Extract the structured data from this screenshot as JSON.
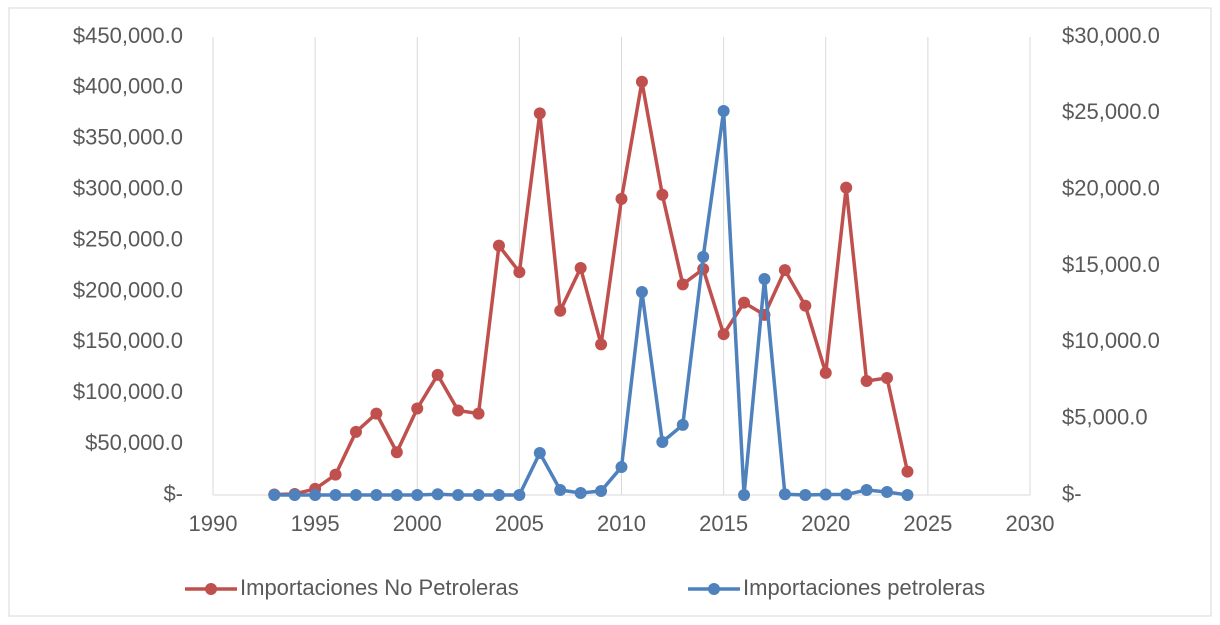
{
  "chart_data": {
    "type": "line",
    "x": [
      1993,
      1994,
      1995,
      1996,
      1997,
      1998,
      1999,
      2000,
      2001,
      2002,
      2003,
      2004,
      2005,
      2006,
      2007,
      2008,
      2009,
      2010,
      2011,
      2012,
      2013,
      2014,
      2015,
      2016,
      2017,
      2018,
      2019,
      2020,
      2021,
      2022,
      2023,
      2024
    ],
    "series": [
      {
        "name": "Importaciones No Petroleras",
        "color": "#c0504d",
        "values": [
          500,
          1000,
          6000,
          20000,
          62000,
          80000,
          42000,
          85000,
          118000,
          83000,
          80000,
          245000,
          219000,
          375000,
          181000,
          223000,
          148000,
          291000,
          406000,
          295000,
          207000,
          222000,
          158000,
          189000,
          177000,
          221000,
          186000,
          120000,
          302000,
          112000,
          115000,
          23000
        ]
      },
      {
        "name": "Importaciones petroleras",
        "color": "#4f81bd",
        "axis": "y2",
        "values": [
          0,
          0,
          0,
          0,
          0,
          0,
          0,
          0,
          50,
          0,
          0,
          0,
          0,
          2750,
          330,
          130,
          260,
          1830,
          13300,
          3470,
          4590,
          15600,
          25150,
          0,
          14150,
          50,
          0,
          30,
          30,
          330,
          200,
          0
        ]
      }
    ],
    "xlim": [
      1990,
      2030
    ],
    "xticks": [
      1990,
      1995,
      2000,
      2005,
      2010,
      2015,
      2020,
      2025,
      2030
    ],
    "ylim": [
      0,
      450000
    ],
    "yticks": [
      {
        "value": 0,
        "label": "$-"
      },
      {
        "value": 50000,
        "label": "$50,000.0"
      },
      {
        "value": 100000,
        "label": "$100,000.0"
      },
      {
        "value": 150000,
        "label": "$150,000.0"
      },
      {
        "value": 200000,
        "label": "$200,000.0"
      },
      {
        "value": 250000,
        "label": "$250,000.0"
      },
      {
        "value": 300000,
        "label": "$300,000.0"
      },
      {
        "value": 350000,
        "label": "$350,000.0"
      },
      {
        "value": 400000,
        "label": "$400,000.0"
      },
      {
        "value": 450000,
        "label": "$450,000.0"
      }
    ],
    "y2lim": [
      0,
      30000
    ],
    "y2ticks": [
      {
        "value": 0,
        "label": "$-"
      },
      {
        "value": 5000,
        "label": "$5,000.0"
      },
      {
        "value": 10000,
        "label": "$10,000.0"
      },
      {
        "value": 15000,
        "label": "$15,000.0"
      },
      {
        "value": 20000,
        "label": "$20,000.0"
      },
      {
        "value": 25000,
        "label": "$25,000.0"
      },
      {
        "value": 30000,
        "label": "$30,000.0"
      }
    ],
    "grid": "x",
    "legend": "bottom"
  }
}
